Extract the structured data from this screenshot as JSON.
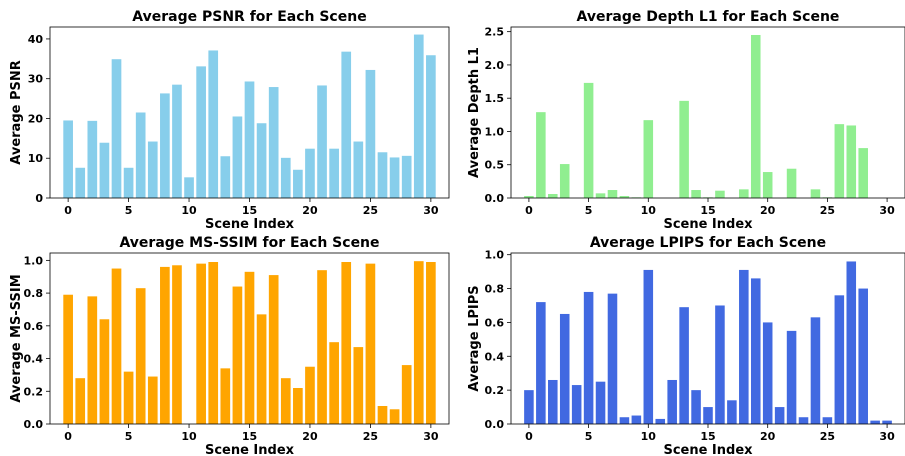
{
  "chart_data": [
    {
      "type": "bar",
      "title": "Average PSNR for Each Scene",
      "xlabel": "Scene Index",
      "ylabel": "Average PSNR",
      "color": "#87CEEB",
      "x": [
        0,
        1,
        2,
        3,
        4,
        5,
        6,
        7,
        8,
        9,
        10,
        11,
        12,
        13,
        14,
        15,
        16,
        17,
        18,
        19,
        20,
        21,
        22,
        23,
        24,
        25,
        26,
        27,
        28,
        29,
        30
      ],
      "values": [
        19.5,
        7.6,
        19.4,
        13.9,
        34.9,
        7.6,
        21.5,
        14.2,
        26.3,
        28.5,
        5.2,
        33.1,
        37.1,
        10.5,
        20.5,
        29.3,
        18.8,
        27.9,
        10.1,
        7.1,
        12.4,
        28.3,
        12.4,
        36.8,
        14.2,
        32.2,
        11.5,
        10.2,
        10.6,
        41.1,
        35.9
      ],
      "xticks": [
        0,
        5,
        10,
        15,
        20,
        25,
        30
      ],
      "yticks": [
        0,
        10,
        20,
        30,
        40
      ],
      "xlim": [
        -1.5,
        31.5
      ],
      "ylim": [
        0,
        43
      ]
    },
    {
      "type": "bar",
      "title": "Average Depth L1 for Each Scene",
      "xlabel": "Scene Index",
      "ylabel": "Average Depth L1",
      "color": "#90EE90",
      "x": [
        0,
        1,
        2,
        3,
        4,
        5,
        6,
        7,
        8,
        9,
        10,
        11,
        12,
        13,
        14,
        15,
        16,
        17,
        18,
        19,
        20,
        21,
        22,
        23,
        24,
        25,
        26,
        27,
        28,
        29,
        30
      ],
      "values": [
        0.03,
        1.29,
        0.06,
        0.51,
        0.0,
        1.73,
        0.07,
        0.12,
        0.03,
        0.01,
        1.17,
        0.0,
        0.0,
        1.46,
        0.12,
        0.01,
        0.11,
        0.0,
        0.13,
        2.45,
        0.39,
        0.0,
        0.44,
        0.0,
        0.13,
        0.01,
        1.11,
        1.09,
        0.75,
        0.0,
        0.0
      ],
      "xticks": [
        0,
        5,
        10,
        15,
        20,
        25,
        30
      ],
      "yticks": [
        0.0,
        0.5,
        1.0,
        1.5,
        2.0,
        2.5
      ],
      "ytick_labels": [
        "0.0",
        "0.5",
        "1.0",
        "1.5",
        "2.0",
        "2.5"
      ],
      "xlim": [
        -1.5,
        31.5
      ],
      "ylim": [
        0,
        2.57
      ]
    },
    {
      "type": "bar",
      "title": "Average MS-SSIM for Each Scene",
      "xlabel": "Scene Index",
      "ylabel": "Average MS-SSIM",
      "color": "#FFA500",
      "x": [
        0,
        1,
        2,
        3,
        4,
        5,
        6,
        7,
        8,
        9,
        10,
        11,
        12,
        13,
        14,
        15,
        16,
        17,
        18,
        19,
        20,
        21,
        22,
        23,
        24,
        25,
        26,
        27,
        28,
        29,
        30
      ],
      "values": [
        0.79,
        0.28,
        0.78,
        0.64,
        0.95,
        0.32,
        0.83,
        0.29,
        0.96,
        0.97,
        0.0,
        0.98,
        0.99,
        0.34,
        0.84,
        0.93,
        0.67,
        0.91,
        0.28,
        0.22,
        0.35,
        0.94,
        0.5,
        0.99,
        0.47,
        0.98,
        0.11,
        0.09,
        0.36,
        0.995,
        0.99
      ],
      "xticks": [
        0,
        5,
        10,
        15,
        20,
        25,
        30
      ],
      "yticks": [
        0.0,
        0.2,
        0.4,
        0.6,
        0.8,
        1.0
      ],
      "ytick_labels": [
        "0.0",
        "0.2",
        "0.4",
        "0.6",
        "0.8",
        "1.0"
      ],
      "xlim": [
        -1.5,
        31.5
      ],
      "ylim": [
        0,
        1.045
      ]
    },
    {
      "type": "bar",
      "title": "Average LPIPS for Each Scene",
      "xlabel": "Scene Index",
      "ylabel": "Average LPIPS",
      "color": "#4169E1",
      "x": [
        0,
        1,
        2,
        3,
        4,
        5,
        6,
        7,
        8,
        9,
        10,
        11,
        12,
        13,
        14,
        15,
        16,
        17,
        18,
        19,
        20,
        21,
        22,
        23,
        24,
        25,
        26,
        27,
        28,
        29,
        30
      ],
      "values": [
        0.2,
        0.72,
        0.26,
        0.65,
        0.23,
        0.78,
        0.25,
        0.77,
        0.04,
        0.05,
        0.91,
        0.03,
        0.26,
        0.69,
        0.2,
        0.1,
        0.7,
        0.14,
        0.91,
        0.86,
        0.6,
        0.1,
        0.55,
        0.04,
        0.63,
        0.04,
        0.76,
        0.96,
        0.8,
        0.02,
        0.02
      ],
      "xticks": [
        0,
        5,
        10,
        15,
        20,
        25,
        30
      ],
      "yticks": [
        0.0,
        0.2,
        0.4,
        0.6,
        0.8,
        1.0
      ],
      "ytick_labels": [
        "0.0",
        "0.2",
        "0.4",
        "0.6",
        "0.8",
        "1.0"
      ],
      "xlim": [
        -1.5,
        31.5
      ],
      "ylim": [
        0,
        1.01
      ]
    }
  ]
}
